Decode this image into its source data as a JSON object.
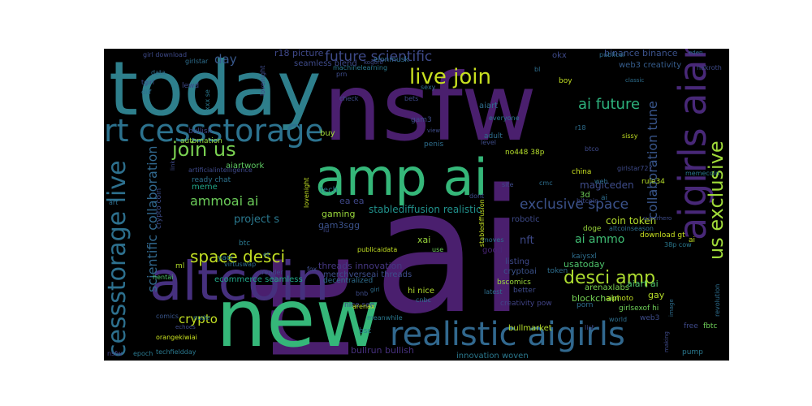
{
  "wordcloud": {
    "background": "#000000",
    "words": [
      {
        "text": "rt",
        "color": "#4a1f6e"
      },
      {
        "text": "ai",
        "color": "#4a1f6e"
      },
      {
        "text": "today",
        "color": "#2e7f8c"
      },
      {
        "text": "nsfw",
        "color": "#4a1f6e"
      },
      {
        "text": "new",
        "color": "#35b779"
      },
      {
        "text": "altcoin",
        "color": "#46307e"
      },
      {
        "text": "amp ai",
        "color": "#35b779"
      },
      {
        "text": "realistic aigirls",
        "color": "#31688e"
      },
      {
        "text": "aigirls aiart",
        "color": "#482878"
      },
      {
        "text": "rt cessstorage",
        "color": "#2c728e"
      },
      {
        "text": "live join",
        "color": "#c8e020"
      },
      {
        "text": "cessstorage live",
        "color": "#2d708e"
      },
      {
        "text": "join us",
        "color": "#7ad151"
      },
      {
        "text": "us exclusive",
        "color": "#a0da39"
      },
      {
        "text": "desci amp",
        "color": "#addc30"
      },
      {
        "text": "space desci",
        "color": "#c2df23"
      },
      {
        "text": "ai future",
        "color": "#2db27d"
      },
      {
        "text": "future scientific",
        "color": "#3e4a89"
      },
      {
        "text": "exclusive space",
        "color": "#3b528b"
      },
      {
        "text": "scientific collaboration",
        "color": "#31688e"
      },
      {
        "text": "collaboration tune",
        "color": "#39568c"
      },
      {
        "text": "ammoai ai",
        "color": "#6ccd5a"
      },
      {
        "text": "crypto",
        "color": "#c2df23"
      },
      {
        "text": "day",
        "color": "#38588c"
      },
      {
        "text": "nsfw",
        "color": "#414487"
      },
      {
        "text": "ai ammo",
        "color": "#3fbc73"
      },
      {
        "text": "project s",
        "color": "#2a788e"
      },
      {
        "text": "nft",
        "color": "#3e4989"
      },
      {
        "text": "coin token",
        "color": "#b5de2b"
      },
      {
        "text": "magiceden",
        "color": "#3e4c8a"
      },
      {
        "text": "web3 creativity",
        "color": "#365d8d"
      },
      {
        "text": "binance binance",
        "color": "#3b528b"
      },
      {
        "text": "r18 picture",
        "color": "#3f4889"
      },
      {
        "text": "seamless blend",
        "color": "#3e4a89"
      },
      {
        "text": "stablediffusion realistic",
        "color": "#21918c"
      },
      {
        "text": "threads innovation",
        "color": "#453781"
      },
      {
        "text": "merchverseai threads",
        "color": "#3d4d8a"
      },
      {
        "text": "ecommerce seamless",
        "color": "#20a486"
      },
      {
        "text": "bullrun bullish",
        "color": "#46307e"
      },
      {
        "text": "innovation woven",
        "color": "#2a788e"
      },
      {
        "text": "arenaxlabs",
        "color": "#7ad151"
      },
      {
        "text": "aiart ai",
        "color": "#4ec36b"
      },
      {
        "text": "usatoday",
        "color": "#4ec36b"
      },
      {
        "text": "gay",
        "color": "#b8de29"
      },
      {
        "text": "blockchain",
        "color": "#75d054"
      },
      {
        "text": "cryptoai",
        "color": "#3b528b"
      },
      {
        "text": "listing",
        "color": "#3e4989"
      },
      {
        "text": "good",
        "color": "#482475"
      },
      {
        "text": "hi nice",
        "color": "#b2dd2d"
      },
      {
        "text": "xai",
        "color": "#9bd93c"
      },
      {
        "text": "aiart",
        "color": "#2e6e8e"
      },
      {
        "text": "gam3",
        "color": "#3e4c8a"
      },
      {
        "text": "gam3sgg",
        "color": "#3b528b"
      },
      {
        "text": "gaming",
        "color": "#9bd93c"
      },
      {
        "text": "ea ea",
        "color": "#3f4788"
      },
      {
        "text": "tech",
        "color": "#2a788e"
      },
      {
        "text": "meme",
        "color": "#20a486"
      },
      {
        "text": "3d",
        "color": "#6ece58"
      },
      {
        "text": "okx",
        "color": "#3e4a89"
      },
      {
        "text": "buy",
        "color": "#a2da37"
      },
      {
        "text": "aiartwork",
        "color": "#5ec962"
      },
      {
        "text": "bullish",
        "color": "#3f4788"
      },
      {
        "text": "automation",
        "color": "#95d840"
      },
      {
        "text": "artificialintelligence",
        "color": "#3e4989"
      },
      {
        "text": "crypto coin",
        "color": "#3e4c8a"
      },
      {
        "text": "ready chat",
        "color": "#2c728e"
      },
      {
        "text": "btc",
        "color": "#2a788e"
      },
      {
        "text": "ml",
        "color": "#b5de2b"
      },
      {
        "text": "yaoi",
        "color": "#2a788e"
      },
      {
        "text": "hentai",
        "color": "#4ec36b"
      },
      {
        "text": "comics",
        "color": "#39568c"
      },
      {
        "text": "nude",
        "color": "#2a788e"
      },
      {
        "text": "orangekiwiai",
        "color": "#c8e020"
      },
      {
        "text": "techfieldday",
        "color": "#2a788e"
      },
      {
        "text": "meanwhile",
        "color": "#2a788e"
      },
      {
        "text": "nice see",
        "color": "#3e4a89"
      },
      {
        "text": "bsc",
        "color": "#2a788e"
      },
      {
        "text": "bnb",
        "color": "#3e4c8a"
      },
      {
        "text": "arenax",
        "color": "#c2df23"
      },
      {
        "text": "cnbc",
        "color": "#2e6e8e"
      },
      {
        "text": "decentralized",
        "color": "#2e6e8e"
      },
      {
        "text": "bullmarket",
        "color": "#b5de2b"
      },
      {
        "text": "creativity pow",
        "color": "#414487"
      },
      {
        "text": "latest",
        "color": "#2e6e8e"
      },
      {
        "text": "bscomics",
        "color": "#9bd93c"
      },
      {
        "text": "better",
        "color": "#3e4a89"
      },
      {
        "text": "porn",
        "color": "#2e6e8e"
      },
      {
        "text": "girlsexof hi",
        "color": "#6ece58"
      },
      {
        "text": "aiphoto",
        "color": "#c2df23"
      },
      {
        "text": "web3",
        "color": "#3e4c8a"
      },
      {
        "text": "world",
        "color": "#2e6e8e"
      },
      {
        "text": "list",
        "color": "#3e4a89"
      },
      {
        "text": "pump",
        "color": "#2a788e"
      },
      {
        "text": "free",
        "color": "#3e4989"
      },
      {
        "text": "fbtc",
        "color": "#6ece58"
      },
      {
        "text": "revolution",
        "color": "#2e6e8e"
      },
      {
        "text": "token",
        "color": "#2e6e8e"
      },
      {
        "text": "kaiysxl",
        "color": "#2e6e8e"
      },
      {
        "text": "download gt",
        "color": "#c8e020"
      },
      {
        "text": "38p cow",
        "color": "#2a788e"
      },
      {
        "text": "altcoinseason",
        "color": "#2e6e8e"
      },
      {
        "text": "doge",
        "color": "#9bd93c"
      },
      {
        "text": "superhero",
        "color": "#3e4c8a"
      },
      {
        "text": "robotic",
        "color": "#3e4a89"
      },
      {
        "text": "china",
        "color": "#c8e020"
      },
      {
        "text": "web",
        "color": "#2e6e8e"
      },
      {
        "text": "rule34",
        "color": "#b5de2b"
      },
      {
        "text": "memecoin",
        "color": "#2a788e"
      },
      {
        "text": "girlstar727",
        "color": "#3e4a89"
      },
      {
        "text": "no448 38p",
        "color": "#b5de2b"
      },
      {
        "text": "cmc",
        "color": "#2e6e8e"
      },
      {
        "text": "btco",
        "color": "#3e4989"
      },
      {
        "text": "sissy",
        "color": "#c2df23"
      },
      {
        "text": "adult",
        "color": "#2e6e8e"
      },
      {
        "text": "level",
        "color": "#3e4c8a"
      },
      {
        "text": "everyone",
        "color": "#2a788e"
      },
      {
        "text": "penis",
        "color": "#2e6e8e"
      },
      {
        "text": "bets",
        "color": "#3e4989"
      },
      {
        "text": "lovenight",
        "color": "#3e4a89"
      },
      {
        "text": "lovenight",
        "color": "#c2df23"
      },
      {
        "text": "elonmusk",
        "color": "#2e6e8e"
      },
      {
        "text": "prn",
        "color": "#3e4c8a"
      },
      {
        "text": "kogoro",
        "color": "#3e4a89"
      },
      {
        "text": "epoch",
        "color": "#2a788e"
      },
      {
        "text": "girlstar",
        "color": "#2e6e8e"
      },
      {
        "text": "girl download",
        "color": "#3e4a89"
      },
      {
        "text": "tgirl",
        "color": "#3e4c8a"
      },
      {
        "text": "dilf",
        "color": "#2e6e8e"
      },
      {
        "text": "lewd",
        "color": "#3e4989"
      },
      {
        "text": "xxx se",
        "color": "#2a788e"
      },
      {
        "text": "sexy",
        "color": "#2e6e8e"
      },
      {
        "text": "bl",
        "color": "#2e6e8e"
      },
      {
        "text": "boy",
        "color": "#c2df23"
      },
      {
        "text": "publicai",
        "color": "#2e6e8e"
      },
      {
        "text": "classic",
        "color": "#2e6e8e"
      },
      {
        "text": "nakroth",
        "color": "#3e4a89"
      },
      {
        "text": "dont",
        "color": "#3e4c8a"
      },
      {
        "text": "moves",
        "color": "#2e6e8e"
      },
      {
        "text": "site",
        "color": "#3e4989"
      },
      {
        "text": "publicaidata",
        "color": "#c2df23"
      },
      {
        "text": "use",
        "color": "#6ece58"
      },
      {
        "text": "irender",
        "color": "#3e4989"
      },
      {
        "text": "virtuswap",
        "color": "#2e6e8e"
      },
      {
        "text": "fox",
        "color": "#3e4c8a"
      },
      {
        "text": "girl",
        "color": "#2e6e8e"
      },
      {
        "text": "et",
        "color": "#2e6e8e"
      },
      {
        "text": "lu",
        "color": "#3e4a89"
      },
      {
        "text": "art",
        "color": "#2e6e8e"
      },
      {
        "text": "link",
        "color": "#3e4989"
      },
      {
        "text": "check",
        "color": "#3e4c8a"
      },
      {
        "text": "view",
        "color": "#3e4c8a"
      },
      {
        "text": "r18",
        "color": "#2e6e8e"
      },
      {
        "text": "image",
        "color": "#2e6e8e"
      },
      {
        "text": "making",
        "color": "#3e4a89"
      },
      {
        "text": "machinelearning",
        "color": "#2a788e"
      },
      {
        "text": "stablediffusion",
        "color": "#c2df23"
      },
      {
        "text": "bitcoin",
        "color": "#3e4c8a"
      },
      {
        "text": "echoes",
        "color": "#3e4a89"
      },
      {
        "text": "eden",
        "color": "#2e6e8e"
      },
      {
        "text": "data",
        "color": "#2e6e8e"
      },
      {
        "text": "ai",
        "color": "#c2df23"
      },
      {
        "text": "ai",
        "color": "#2e6e8e"
      }
    ]
  }
}
